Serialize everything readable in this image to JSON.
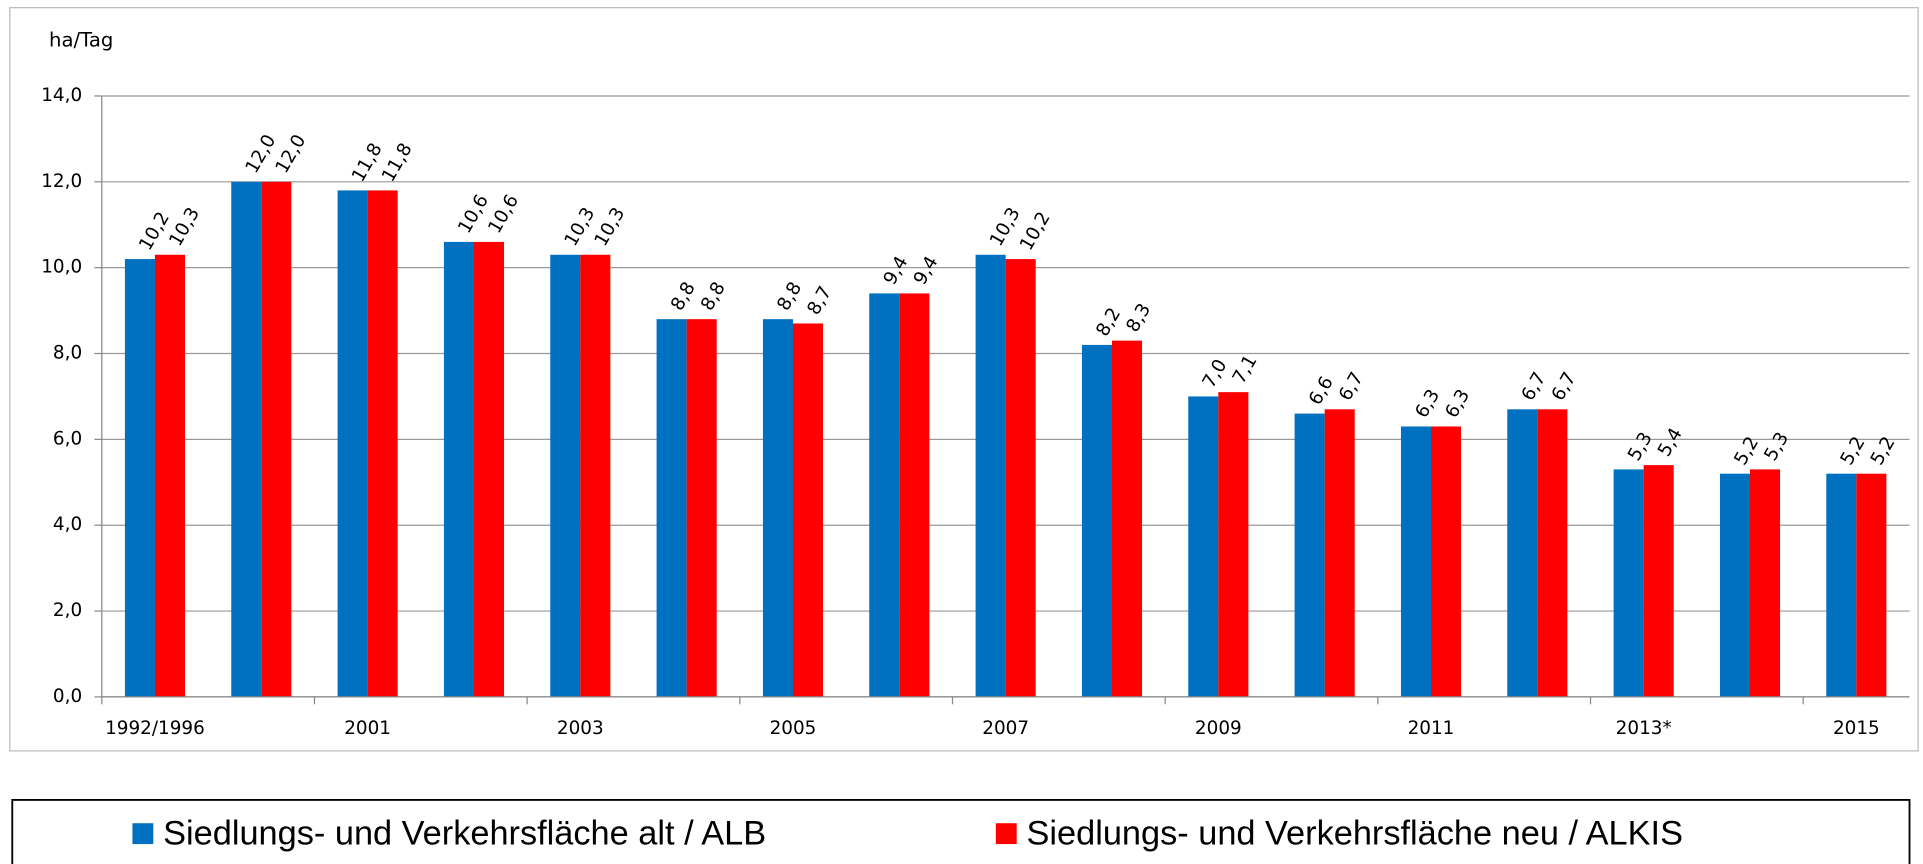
{
  "chart_data": {
    "type": "bar",
    "y_axis_label": "ha/Tag",
    "categories": [
      "1992/1996",
      null,
      "2001",
      null,
      "2003",
      null,
      "2005",
      null,
      "2007",
      null,
      "2009",
      null,
      "2011",
      null,
      "2013*",
      null,
      "2015"
    ],
    "series": [
      {
        "name": "Siedlungs- und Verkehrsfläche alt / ALB",
        "color": "#0070c0",
        "values": [
          10.2,
          12.0,
          11.8,
          10.6,
          10.3,
          8.8,
          8.8,
          9.4,
          10.3,
          8.2,
          7.0,
          6.6,
          6.3,
          6.7,
          5.3,
          5.2,
          5.2
        ],
        "value_labels": [
          "10,2",
          "12,0",
          "11,8",
          "10,6",
          "10,3",
          "8,8",
          "8,8",
          "9,4",
          "10,3",
          "8,2",
          "7,0",
          "6,6",
          "6,3",
          "6,7",
          "5,3",
          "5,2",
          "5,2"
        ]
      },
      {
        "name": "Siedlungs- und Verkehrsfläche neu / ALKIS",
        "color": "#ff0000",
        "values": [
          10.3,
          12.0,
          11.8,
          10.6,
          10.3,
          8.8,
          8.7,
          9.4,
          10.2,
          8.3,
          7.1,
          6.7,
          6.3,
          6.7,
          5.4,
          5.3,
          5.2
        ],
        "value_labels": [
          "10,3",
          "12,0",
          "11,8",
          "10,6",
          "10,3",
          "8,8",
          "8,7",
          "9,4",
          "10,2",
          "8,3",
          "7,1",
          "6,7",
          "6,3",
          "6,7",
          "5,4",
          "5,3",
          "5,2"
        ]
      }
    ],
    "ylim": [
      0,
      14
    ],
    "yticks": [
      {
        "value": 0,
        "label": "0,0"
      },
      {
        "value": 2,
        "label": "2,0"
      },
      {
        "value": 4,
        "label": "4,0"
      },
      {
        "value": 6,
        "label": "6,0"
      },
      {
        "value": 8,
        "label": "8,0"
      },
      {
        "value": 10,
        "label": "10,0"
      },
      {
        "value": 12,
        "label": "12,0"
      },
      {
        "value": 14,
        "label": "14,0"
      }
    ],
    "grid": true,
    "legend": "bottom"
  }
}
